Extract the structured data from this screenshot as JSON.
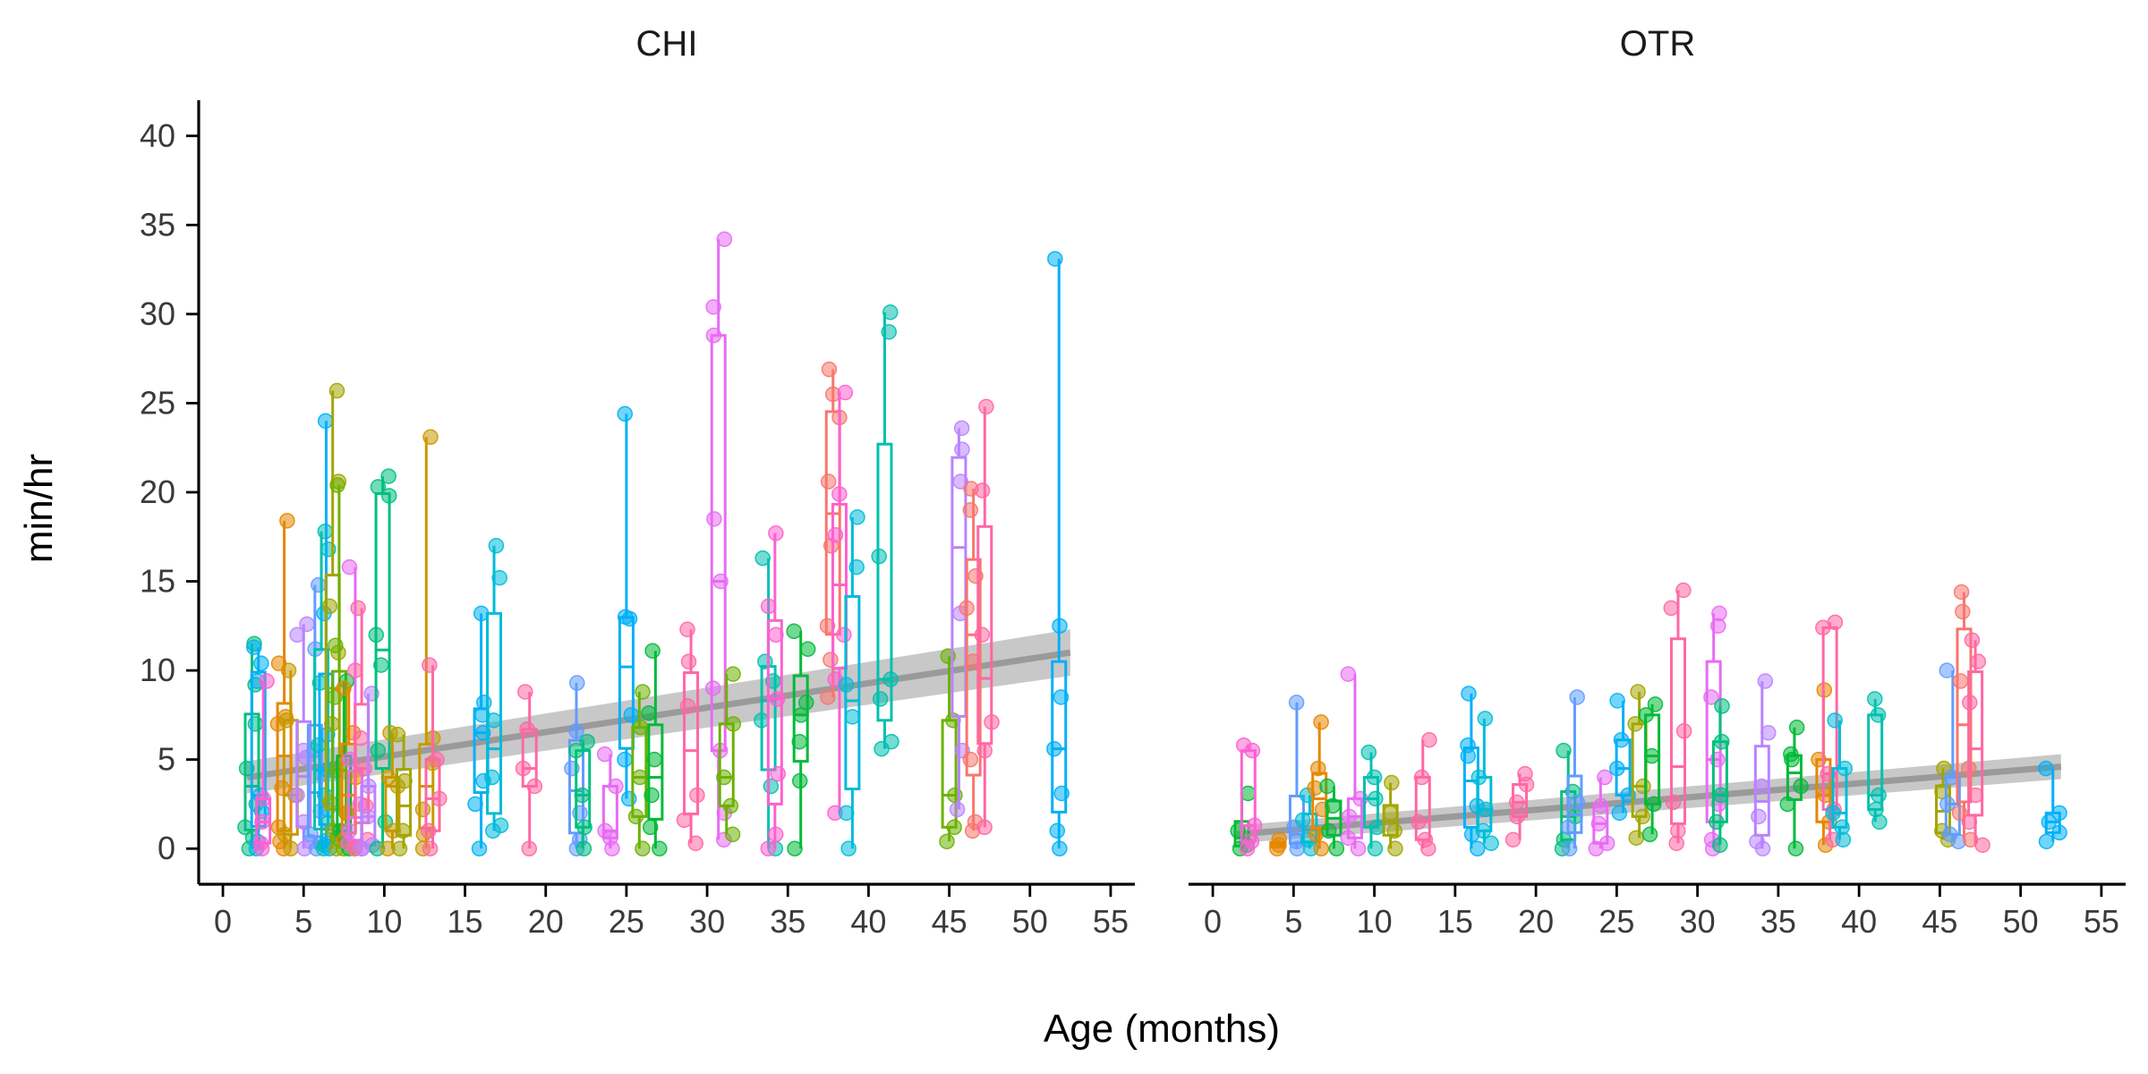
{
  "chart_data": {
    "type": "scatter",
    "xlabel": "Age (months)",
    "ylabel": "min/hr",
    "xlim": [
      -1.5,
      56.5
    ],
    "ylim": [
      -2,
      42
    ],
    "x_ticks": [
      0,
      5,
      10,
      15,
      20,
      25,
      30,
      35,
      40,
      45,
      50,
      55
    ],
    "y_ticks": [
      0,
      5,
      10,
      15,
      20,
      25,
      30,
      35,
      40
    ],
    "x_tick_labels": [
      "0",
      "5",
      "10",
      "15",
      "20",
      "25",
      "30",
      "35",
      "40",
      "45",
      "50",
      "55"
    ],
    "y_tick_labels": [
      "0",
      "5",
      "10",
      "15",
      "20",
      "25",
      "30",
      "35",
      "40"
    ],
    "grid": false,
    "legend": "none",
    "overlay": "linear trend line with grey confidence band; per-child boxplots with jittered points",
    "colors": [
      "#F8766D",
      "#E58700",
      "#C99800",
      "#A3A500",
      "#6BB100",
      "#00BA38",
      "#00BF7D",
      "#00C0AF",
      "#00BCD8",
      "#00B0F6",
      "#619CFF",
      "#B983FF",
      "#E76BF3",
      "#FD61D1",
      "#FF67A4"
    ],
    "panels": [
      {
        "strip": "CHI",
        "trend": {
          "x": [
            1.5,
            52.5
          ],
          "y": [
            4.0,
            11.0
          ],
          "band_start": 0.9,
          "band_end": 1.3
        },
        "groups": [
          {
            "x": 1.8,
            "color": 6,
            "values": [
              0,
              0.6,
              1.2,
              2.5,
              4.5,
              7.0,
              9.2,
              11.5
            ]
          },
          {
            "x": 2.2,
            "color": 9,
            "values": [
              0,
              0.4,
              2.1,
              3.0,
              9.4,
              10.4,
              11.3
            ]
          },
          {
            "x": 2.5,
            "color": 13,
            "values": [
              0,
              0.3,
              1.5,
              2.8,
              9.4
            ]
          },
          {
            "x": 3.8,
            "color": 1,
            "values": [
              0,
              0.4,
              1.2,
              3.4,
              7.0,
              7.4,
              10.4,
              18.4
            ]
          },
          {
            "x": 4.2,
            "color": 2,
            "values": [
              0,
              0.8,
              3.0,
              7.2,
              10.0
            ]
          },
          {
            "x": 5.0,
            "color": 11,
            "values": [
              0,
              0.4,
              1.5,
              3.0,
              5.1,
              5.5,
              12.0,
              12.6
            ]
          },
          {
            "x": 5.7,
            "color": 10,
            "values": [
              0,
              0.3,
              0.8,
              2.1,
              4.2,
              5.5,
              11.2,
              14.8
            ]
          },
          {
            "x": 6.1,
            "color": 7,
            "values": [
              0,
              0.2,
              1.4,
              3.0,
              5.8,
              9.3,
              16.8,
              17.8
            ]
          },
          {
            "x": 6.4,
            "color": 9,
            "values": [
              0,
              0.5,
              2.2,
              4.4,
              6.4,
              13.2,
              24.0
            ]
          },
          {
            "x": 6.8,
            "color": 3,
            "values": [
              0,
              1.0,
              2.6,
              7.0,
              11.0,
              13.6,
              20.6,
              25.7
            ]
          },
          {
            "x": 7.2,
            "color": 4,
            "values": [
              0,
              0.6,
              2.0,
              4.4,
              8.5,
              11.4,
              20.4
            ]
          },
          {
            "x": 7.5,
            "color": 5,
            "values": [
              0,
              1.0,
              9.4
            ]
          },
          {
            "x": 7.8,
            "color": 1,
            "values": [
              0,
              0.5,
              2.0,
              4.0,
              6.5,
              9.0
            ]
          },
          {
            "x": 8.2,
            "color": 12,
            "values": [
              0,
              0.3,
              1.0,
              2.5,
              5.0,
              15.8
            ]
          },
          {
            "x": 8.6,
            "color": 14,
            "values": [
              0,
              0.5,
              2.4,
              4.5,
              6.2,
              10.0,
              13.5
            ]
          },
          {
            "x": 9.0,
            "color": 11,
            "values": [
              0,
              0.2,
              1.8,
              3.5,
              8.7
            ]
          },
          {
            "x": 9.9,
            "color": 6,
            "values": [
              0,
              1.5,
              5.5,
              10.3,
              12.0,
              19.8,
              20.3,
              20.9
            ]
          },
          {
            "x": 10.5,
            "color": 2,
            "values": [
              0,
              1.0,
              3.5,
              4.0,
              6.5
            ]
          },
          {
            "x": 11.2,
            "color": 3,
            "values": [
              0,
              1.0,
              3.8,
              6.4
            ]
          },
          {
            "x": 12.6,
            "color": 2,
            "values": [
              0,
              0.8,
              2.2,
              4.8,
              6.2,
              23.1
            ]
          },
          {
            "x": 13.0,
            "color": 14,
            "values": [
              0,
              1.0,
              2.8,
              5.0,
              10.3
            ]
          },
          {
            "x": 16.0,
            "color": 9,
            "values": [
              0,
              2.5,
              3.8,
              6.5,
              7.5,
              8.2,
              13.2
            ]
          },
          {
            "x": 16.8,
            "color": 8,
            "values": [
              1.0,
              1.3,
              4.0,
              7.2,
              15.2,
              17.0
            ]
          },
          {
            "x": 19.0,
            "color": 14,
            "values": [
              0,
              3.5,
              4.5,
              6.7,
              8.8
            ]
          },
          {
            "x": 21.9,
            "color": 10,
            "values": [
              0,
              0.5,
              2.0,
              4.5,
              6.6,
              9.3
            ]
          },
          {
            "x": 22.3,
            "color": 6,
            "values": [
              0,
              1.2,
              3.0,
              5.5,
              6.0
            ]
          },
          {
            "x": 24.0,
            "color": 12,
            "values": [
              0,
              0.6,
              1.0,
              3.5,
              5.3
            ]
          },
          {
            "x": 25.0,
            "color": 9,
            "values": [
              2.8,
              5.0,
              7.5,
              12.9,
              13.0,
              24.4
            ]
          },
          {
            "x": 25.8,
            "color": 4,
            "values": [
              0,
              1.8,
              4.0,
              6.8,
              8.8
            ]
          },
          {
            "x": 26.8,
            "color": 5,
            "values": [
              0,
              1.2,
              3.0,
              5.0,
              7.6,
              11.1
            ]
          },
          {
            "x": 29.0,
            "color": 14,
            "values": [
              0.3,
              1.6,
              3.0,
              8.0,
              10.5,
              12.3
            ]
          },
          {
            "x": 30.7,
            "color": 12,
            "values": [
              0.5,
              2.0,
              5.5,
              9.0,
              15.0,
              18.5,
              28.8,
              30.4,
              34.2
            ]
          },
          {
            "x": 31.2,
            "color": 4,
            "values": [
              0.8,
              2.4,
              4.0,
              7.0,
              9.8
            ]
          },
          {
            "x": 33.8,
            "color": 7,
            "values": [
              0,
              3.5,
              7.2,
              9.4,
              10.5,
              16.3
            ]
          },
          {
            "x": 34.2,
            "color": 13,
            "values": [
              0,
              0.8,
              4.2,
              8.4,
              12.0,
              13.6,
              17.7
            ]
          },
          {
            "x": 35.8,
            "color": 5,
            "values": [
              0,
              3.8,
              6.0,
              7.5,
              8.2,
              11.2,
              12.2
            ]
          },
          {
            "x": 37.8,
            "color": 0,
            "values": [
              8.5,
              10.6,
              12.5,
              17.0,
              20.6,
              24.2,
              25.5,
              26.9
            ]
          },
          {
            "x": 38.2,
            "color": 13,
            "values": [
              2.0,
              9.5,
              12.0,
              17.6,
              19.9,
              25.6
            ]
          },
          {
            "x": 39.0,
            "color": 8,
            "values": [
              0,
              2.0,
              7.4,
              9.2,
              15.8,
              18.6
            ]
          },
          {
            "x": 41.0,
            "color": 7,
            "values": [
              5.6,
              6.0,
              8.4,
              9.5,
              16.4,
              29.0,
              30.1
            ]
          },
          {
            "x": 45.0,
            "color": 4,
            "values": [
              0.4,
              1.2,
              3.0,
              7.2,
              10.8
            ]
          },
          {
            "x": 45.6,
            "color": 11,
            "values": [
              2.2,
              5.5,
              13.2,
              20.6,
              22.4,
              23.6
            ]
          },
          {
            "x": 46.5,
            "color": 0,
            "values": [
              1.0,
              1.5,
              5.0,
              10.5,
              13.5,
              15.3,
              19.0,
              20.2
            ]
          },
          {
            "x": 47.2,
            "color": 14,
            "values": [
              1.2,
              5.5,
              7.1,
              12.0,
              20.1,
              24.8
            ]
          },
          {
            "x": 51.8,
            "color": 9,
            "values": [
              0,
              1.0,
              3.1,
              5.6,
              8.5,
              12.5,
              33.1
            ]
          }
        ]
      },
      {
        "strip": "OTR",
        "trend": {
          "x": [
            1.5,
            52.5
          ],
          "y": [
            0.8,
            4.6
          ],
          "band_start": 0.5,
          "band_end": 0.7
        },
        "groups": [
          {
            "x": 1.8,
            "color": 5,
            "values": [
              0,
              0.2,
              1.0,
              3.1
            ]
          },
          {
            "x": 2.2,
            "color": 13,
            "values": [
              0,
              0.4,
              1.3,
              5.5,
              5.8
            ]
          },
          {
            "x": 4.0,
            "color": 1,
            "values": [
              0,
              0.2,
              0.5
            ]
          },
          {
            "x": 5.2,
            "color": 10,
            "values": [
              0,
              0.4,
              1.2,
              8.2
            ]
          },
          {
            "x": 6.0,
            "color": 8,
            "values": [
              0,
              0.5,
              1.6,
              3.0
            ]
          },
          {
            "x": 6.6,
            "color": 1,
            "values": [
              0,
              0.8,
              2.2,
              3.4,
              4.5,
              7.1
            ]
          },
          {
            "x": 7.5,
            "color": 5,
            "values": [
              0,
              1.0,
              2.4,
              3.5
            ]
          },
          {
            "x": 8.8,
            "color": 12,
            "values": [
              0,
              0.6,
              1.8,
              2.8,
              9.8
            ]
          },
          {
            "x": 9.8,
            "color": 7,
            "values": [
              0,
              1.2,
              2.8,
              4.0,
              5.4
            ]
          },
          {
            "x": 11.0,
            "color": 3,
            "values": [
              0,
              1.0,
              2.0,
              3.7
            ]
          },
          {
            "x": 13.0,
            "color": 14,
            "values": [
              0,
              0.5,
              1.5,
              4.0,
              6.1
            ]
          },
          {
            "x": 16.0,
            "color": 9,
            "values": [
              0,
              0.8,
              2.4,
              5.2,
              5.8,
              8.7
            ]
          },
          {
            "x": 16.8,
            "color": 8,
            "values": [
              0.3,
              1.0,
              2.2,
              4.0,
              7.3
            ]
          },
          {
            "x": 19.0,
            "color": 14,
            "values": [
              0.5,
              1.8,
              2.6,
              3.6,
              4.2
            ]
          },
          {
            "x": 22.0,
            "color": 6,
            "values": [
              0,
              0.5,
              1.8,
              3.2,
              5.5
            ]
          },
          {
            "x": 22.4,
            "color": 10,
            "values": [
              0,
              1.2,
              2.6,
              8.5
            ]
          },
          {
            "x": 24.0,
            "color": 12,
            "values": [
              0,
              0.3,
              1.4,
              2.4,
              4.0
            ]
          },
          {
            "x": 25.4,
            "color": 9,
            "values": [
              2.0,
              3.0,
              4.5,
              6.1,
              8.3
            ]
          },
          {
            "x": 26.4,
            "color": 3,
            "values": [
              0.6,
              1.8,
              3.5,
              7.0,
              8.8
            ]
          },
          {
            "x": 27.2,
            "color": 5,
            "values": [
              0.8,
              2.5,
              5.2,
              7.5,
              8.1
            ]
          },
          {
            "x": 28.8,
            "color": 14,
            "values": [
              0.3,
              1.0,
              2.6,
              6.6,
              13.5,
              14.5
            ]
          },
          {
            "x": 31.0,
            "color": 12,
            "values": [
              0,
              0.5,
              2.5,
              5.0,
              8.5,
              12.5,
              13.2
            ]
          },
          {
            "x": 31.4,
            "color": 6,
            "values": [
              0.2,
              1.5,
              3.0,
              6.0,
              8.0
            ]
          },
          {
            "x": 34.0,
            "color": 11,
            "values": [
              0,
              0.4,
              1.8,
              3.5,
              6.5,
              9.4
            ]
          },
          {
            "x": 36.0,
            "color": 5,
            "values": [
              0,
              2.5,
              3.5,
              5.0,
              5.3,
              6.8
            ]
          },
          {
            "x": 37.8,
            "color": 1,
            "values": [
              0.2,
              1.5,
              3.0,
              5.0,
              8.9
            ]
          },
          {
            "x": 38.2,
            "color": 14,
            "values": [
              0.5,
              2.2,
              4.2,
              12.4,
              12.7
            ]
          },
          {
            "x": 38.8,
            "color": 8,
            "values": [
              0.5,
              1.2,
              2.0,
              4.5,
              7.2
            ]
          },
          {
            "x": 41.0,
            "color": 7,
            "values": [
              1.5,
              2.2,
              3.0,
              7.5,
              8.4
            ]
          },
          {
            "x": 45.2,
            "color": 3,
            "values": [
              0.5,
              1.0,
              3.2,
              4.5
            ]
          },
          {
            "x": 45.8,
            "color": 10,
            "values": [
              0.4,
              0.8,
              2.5,
              4.0,
              10.0
            ]
          },
          {
            "x": 46.5,
            "color": 0,
            "values": [
              0.5,
              2.0,
              4.5,
              9.4,
              13.3,
              14.4
            ]
          },
          {
            "x": 47.2,
            "color": 14,
            "values": [
              0.2,
              1.5,
              3.0,
              8.2,
              10.5,
              11.7
            ]
          },
          {
            "x": 52.0,
            "color": 9,
            "values": [
              0.4,
              0.9,
              1.5,
              2.0,
              4.5
            ]
          }
        ]
      }
    ]
  }
}
